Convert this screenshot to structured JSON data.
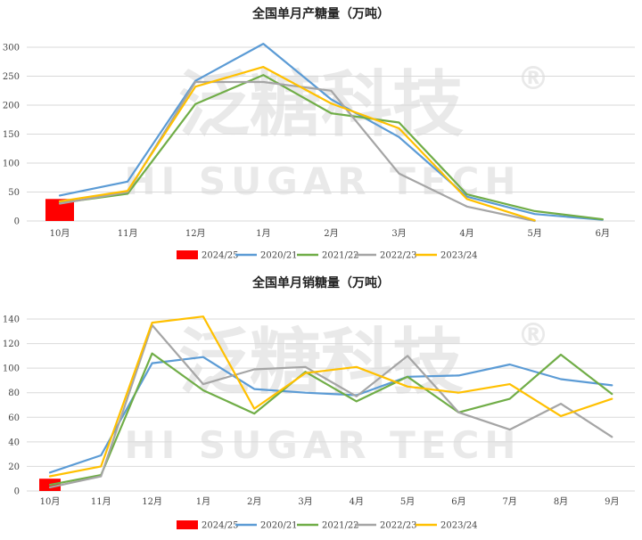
{
  "watermark": {
    "main": "泛糖科技",
    "sub": "HI SUGAR TECH",
    "reg": "®"
  },
  "chart_data": [
    {
      "type": "line",
      "title": "全国单月产糖量（万吨）",
      "categories": [
        "10月",
        "11月",
        "12月",
        "1月",
        "2月",
        "3月",
        "4月",
        "5月",
        "6月"
      ],
      "ylim": [
        0,
        300
      ],
      "yticks": [
        0,
        50,
        100,
        150,
        200,
        250,
        300
      ],
      "grid": true,
      "legend": "bottom",
      "series": [
        {
          "name": "2024/25",
          "kind": "bar",
          "color": "#ff0000",
          "values": [
            38,
            null,
            null,
            null,
            null,
            null,
            null,
            null,
            null
          ]
        },
        {
          "name": "2020/21",
          "kind": "line",
          "color": "#5b9bd5",
          "values": [
            44,
            68,
            242,
            306,
            210,
            145,
            42,
            12,
            2
          ]
        },
        {
          "name": "2021/22",
          "kind": "line",
          "color": "#70ad47",
          "values": [
            31,
            47,
            202,
            252,
            186,
            170,
            46,
            17,
            3
          ]
        },
        {
          "name": "2022/23",
          "kind": "line",
          "color": "#a5a5a5",
          "values": [
            30,
            50,
            240,
            240,
            225,
            82,
            25,
            0,
            null
          ]
        },
        {
          "name": "2023/24",
          "kind": "line",
          "color": "#ffc000",
          "values": [
            34,
            52,
            232,
            266,
            203,
            160,
            38,
            1,
            null
          ]
        }
      ]
    },
    {
      "type": "line",
      "title": "全国单月销糖量（万吨）",
      "categories": [
        "10月",
        "11月",
        "12月",
        "1月",
        "2月",
        "3月",
        "4月",
        "5月",
        "6月",
        "7月",
        "8月",
        "9月"
      ],
      "ylim": [
        0,
        140
      ],
      "yticks": [
        0,
        20,
        40,
        60,
        80,
        100,
        120,
        140
      ],
      "grid": true,
      "legend": "bottom",
      "series": [
        {
          "name": "2024/25",
          "kind": "bar",
          "color": "#ff0000",
          "values": [
            10,
            null,
            null,
            null,
            null,
            null,
            null,
            null,
            null,
            null,
            null,
            null
          ]
        },
        {
          "name": "2020/21",
          "kind": "line",
          "color": "#5b9bd5",
          "values": [
            15,
            29,
            104,
            109,
            83,
            80,
            78,
            93,
            94,
            103,
            91,
            86
          ]
        },
        {
          "name": "2021/22",
          "kind": "line",
          "color": "#70ad47",
          "values": [
            5,
            13,
            112,
            82,
            63,
            97,
            73,
            93,
            64,
            75,
            111,
            79
          ]
        },
        {
          "name": "2022/23",
          "kind": "line",
          "color": "#a5a5a5",
          "values": [
            3,
            12,
            135,
            87,
            99,
            101,
            77,
            110,
            64,
            50,
            71,
            44
          ]
        },
        {
          "name": "2023/24",
          "kind": "line",
          "color": "#ffc000",
          "values": [
            12,
            20,
            137,
            142,
            67,
            96,
            101,
            85,
            80,
            87,
            61,
            75
          ]
        }
      ]
    }
  ]
}
